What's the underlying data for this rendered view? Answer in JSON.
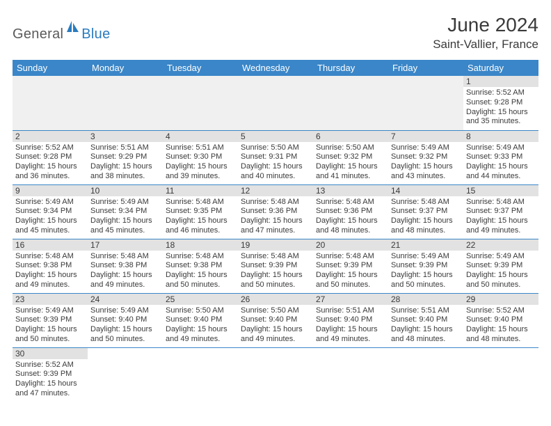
{
  "brand": {
    "part1": "General",
    "part2": "Blue"
  },
  "title": "June 2024",
  "location": "Saint-Vallier, France",
  "weekdays": [
    "Sunday",
    "Monday",
    "Tuesday",
    "Wednesday",
    "Thursday",
    "Friday",
    "Saturday"
  ],
  "colors": {
    "header_bg": "#3a86c8",
    "header_text": "#ffffff",
    "daynum_bg": "#e2e2e2",
    "row_divider": "#3a86c8",
    "blank_bg": "#f0f0f0",
    "text": "#3a3a3a",
    "brand_gray": "#5a5a5a",
    "brand_blue": "#2a7bbf"
  },
  "weeks": [
    [
      null,
      null,
      null,
      null,
      null,
      null,
      {
        "n": "1",
        "sr": "5:52 AM",
        "ss": "9:28 PM",
        "dlh": "15",
        "dlm": "35"
      }
    ],
    [
      {
        "n": "2",
        "sr": "5:52 AM",
        "ss": "9:28 PM",
        "dlh": "15",
        "dlm": "36"
      },
      {
        "n": "3",
        "sr": "5:51 AM",
        "ss": "9:29 PM",
        "dlh": "15",
        "dlm": "38"
      },
      {
        "n": "4",
        "sr": "5:51 AM",
        "ss": "9:30 PM",
        "dlh": "15",
        "dlm": "39"
      },
      {
        "n": "5",
        "sr": "5:50 AM",
        "ss": "9:31 PM",
        "dlh": "15",
        "dlm": "40"
      },
      {
        "n": "6",
        "sr": "5:50 AM",
        "ss": "9:32 PM",
        "dlh": "15",
        "dlm": "41"
      },
      {
        "n": "7",
        "sr": "5:49 AM",
        "ss": "9:32 PM",
        "dlh": "15",
        "dlm": "43"
      },
      {
        "n": "8",
        "sr": "5:49 AM",
        "ss": "9:33 PM",
        "dlh": "15",
        "dlm": "44"
      }
    ],
    [
      {
        "n": "9",
        "sr": "5:49 AM",
        "ss": "9:34 PM",
        "dlh": "15",
        "dlm": "45"
      },
      {
        "n": "10",
        "sr": "5:49 AM",
        "ss": "9:34 PM",
        "dlh": "15",
        "dlm": "45"
      },
      {
        "n": "11",
        "sr": "5:48 AM",
        "ss": "9:35 PM",
        "dlh": "15",
        "dlm": "46"
      },
      {
        "n": "12",
        "sr": "5:48 AM",
        "ss": "9:36 PM",
        "dlh": "15",
        "dlm": "47"
      },
      {
        "n": "13",
        "sr": "5:48 AM",
        "ss": "9:36 PM",
        "dlh": "15",
        "dlm": "48"
      },
      {
        "n": "14",
        "sr": "5:48 AM",
        "ss": "9:37 PM",
        "dlh": "15",
        "dlm": "48"
      },
      {
        "n": "15",
        "sr": "5:48 AM",
        "ss": "9:37 PM",
        "dlh": "15",
        "dlm": "49"
      }
    ],
    [
      {
        "n": "16",
        "sr": "5:48 AM",
        "ss": "9:38 PM",
        "dlh": "15",
        "dlm": "49"
      },
      {
        "n": "17",
        "sr": "5:48 AM",
        "ss": "9:38 PM",
        "dlh": "15",
        "dlm": "49"
      },
      {
        "n": "18",
        "sr": "5:48 AM",
        "ss": "9:38 PM",
        "dlh": "15",
        "dlm": "50"
      },
      {
        "n": "19",
        "sr": "5:48 AM",
        "ss": "9:39 PM",
        "dlh": "15",
        "dlm": "50"
      },
      {
        "n": "20",
        "sr": "5:48 AM",
        "ss": "9:39 PM",
        "dlh": "15",
        "dlm": "50"
      },
      {
        "n": "21",
        "sr": "5:49 AM",
        "ss": "9:39 PM",
        "dlh": "15",
        "dlm": "50"
      },
      {
        "n": "22",
        "sr": "5:49 AM",
        "ss": "9:39 PM",
        "dlh": "15",
        "dlm": "50"
      }
    ],
    [
      {
        "n": "23",
        "sr": "5:49 AM",
        "ss": "9:39 PM",
        "dlh": "15",
        "dlm": "50"
      },
      {
        "n": "24",
        "sr": "5:49 AM",
        "ss": "9:40 PM",
        "dlh": "15",
        "dlm": "50"
      },
      {
        "n": "25",
        "sr": "5:50 AM",
        "ss": "9:40 PM",
        "dlh": "15",
        "dlm": "49"
      },
      {
        "n": "26",
        "sr": "5:50 AM",
        "ss": "9:40 PM",
        "dlh": "15",
        "dlm": "49"
      },
      {
        "n": "27",
        "sr": "5:51 AM",
        "ss": "9:40 PM",
        "dlh": "15",
        "dlm": "49"
      },
      {
        "n": "28",
        "sr": "5:51 AM",
        "ss": "9:40 PM",
        "dlh": "15",
        "dlm": "48"
      },
      {
        "n": "29",
        "sr": "5:52 AM",
        "ss": "9:40 PM",
        "dlh": "15",
        "dlm": "48"
      }
    ],
    [
      {
        "n": "30",
        "sr": "5:52 AM",
        "ss": "9:39 PM",
        "dlh": "15",
        "dlm": "47"
      },
      null,
      null,
      null,
      null,
      null,
      null
    ]
  ],
  "labels": {
    "sunrise": "Sunrise:",
    "sunset": "Sunset:",
    "daylight": "Daylight:",
    "hours": "hours",
    "and": "and",
    "minutes": "minutes."
  }
}
